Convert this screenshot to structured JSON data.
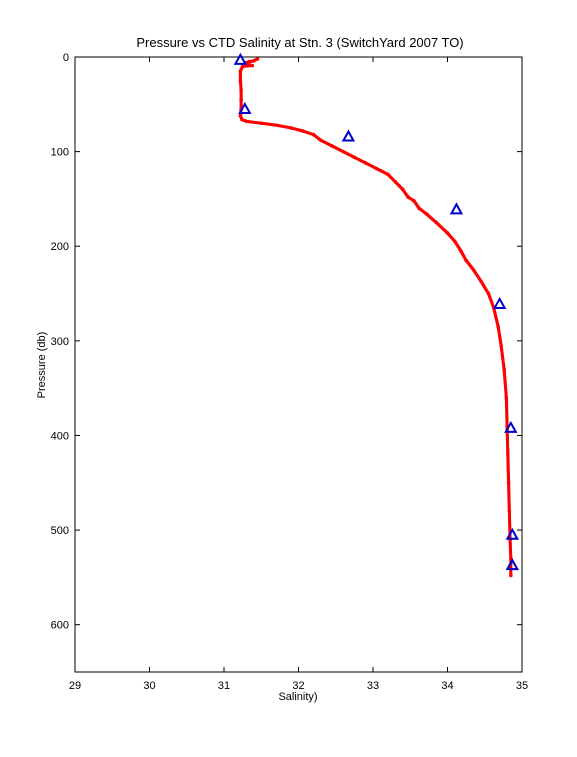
{
  "chart_data": {
    "type": "scatter",
    "title": "Pressure vs CTD Salinity at Stn. 3 (SwitchYard 2007 TO)",
    "xlabel": "Salinity)",
    "ylabel": "Pressure (db)",
    "xlim": [
      29,
      35
    ],
    "ylim": [
      0,
      650
    ],
    "y_reversed": true,
    "x_ticks": [
      29,
      30,
      31,
      32,
      33,
      34,
      35
    ],
    "y_ticks": [
      0,
      100,
      200,
      300,
      400,
      500,
      600
    ],
    "grid": false,
    "colors": {
      "ctd": "#ff0000",
      "bottle": "#0000cc"
    },
    "series": [
      {
        "marker": "dot",
        "points": [
          [
            31.45,
            2
          ],
          [
            31.4,
            4
          ],
          [
            31.34,
            5
          ],
          [
            31.3,
            6
          ],
          [
            31.33,
            8
          ],
          [
            31.38,
            9
          ],
          [
            31.25,
            10
          ],
          [
            31.22,
            15
          ],
          [
            31.22,
            25
          ],
          [
            31.23,
            35
          ],
          [
            31.23,
            45
          ],
          [
            31.23,
            55
          ],
          [
            31.22,
            62
          ],
          [
            31.24,
            66
          ],
          [
            31.3,
            68
          ],
          [
            31.5,
            70
          ],
          [
            31.7,
            72
          ],
          [
            31.9,
            75
          ],
          [
            32.05,
            78
          ],
          [
            32.2,
            82
          ],
          [
            32.3,
            88
          ],
          [
            32.45,
            94
          ],
          [
            32.6,
            100
          ],
          [
            32.75,
            106
          ],
          [
            32.9,
            112
          ],
          [
            33.05,
            118
          ],
          [
            33.2,
            124
          ],
          [
            33.3,
            132
          ],
          [
            33.4,
            140
          ],
          [
            33.47,
            148
          ],
          [
            33.55,
            152
          ],
          [
            33.62,
            160
          ],
          [
            33.72,
            166
          ],
          [
            33.85,
            175
          ],
          [
            34.0,
            186
          ],
          [
            34.1,
            195
          ],
          [
            34.18,
            205
          ],
          [
            34.25,
            215
          ],
          [
            34.35,
            225
          ],
          [
            34.45,
            237
          ],
          [
            34.55,
            250
          ],
          [
            34.62,
            265
          ],
          [
            34.68,
            285
          ],
          [
            34.72,
            305
          ],
          [
            34.76,
            330
          ],
          [
            34.79,
            360
          ],
          [
            34.8,
            390
          ],
          [
            34.81,
            420
          ],
          [
            34.82,
            450
          ],
          [
            34.83,
            480
          ],
          [
            34.84,
            510
          ],
          [
            34.85,
            530
          ],
          [
            34.85,
            548
          ]
        ]
      },
      {
        "marker": "triangle",
        "points": [
          [
            31.22,
            3
          ],
          [
            31.28,
            55
          ],
          [
            32.67,
            84
          ],
          [
            34.12,
            161
          ],
          [
            34.7,
            261
          ],
          [
            34.85,
            392
          ],
          [
            34.87,
            505
          ],
          [
            34.87,
            537
          ]
        ]
      }
    ]
  }
}
